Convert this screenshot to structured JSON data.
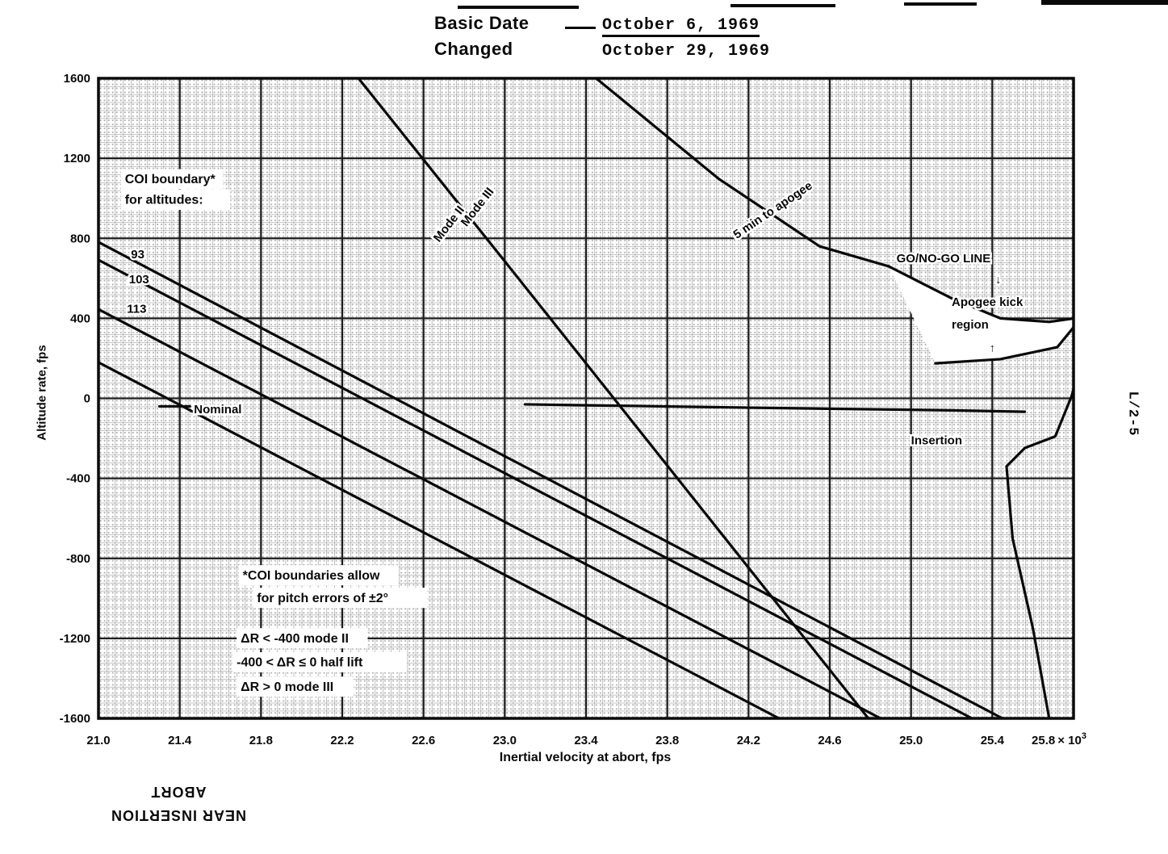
{
  "header": {
    "basic_date_label": "Basic Date",
    "basic_date_value": "October 6, 1969",
    "changed_label": "Changed",
    "changed_value": "October 29, 1969"
  },
  "side_label": "L/2-5",
  "footer_stamp": {
    "line1": "NEAR INSERTION",
    "line2": "ABORT"
  },
  "chart_data": {
    "type": "line",
    "title": "",
    "xlabel": "Inertial velocity at abort, fps",
    "ylabel": "Altitude rate, fps",
    "xlim": [
      21.0,
      25.8
    ],
    "ylim": [
      -1600,
      1600
    ],
    "x_ticks": [
      21.0,
      21.4,
      21.8,
      22.2,
      22.6,
      23.0,
      23.4,
      23.8,
      24.2,
      24.6,
      25.0,
      25.4,
      25.8
    ],
    "x_axis_multiplier": {
      "base": "× 10",
      "exponent": "3"
    },
    "y_ticks": [
      1600,
      1200,
      800,
      400,
      0,
      -400,
      -800,
      -1200,
      -1600
    ],
    "grid": {
      "major": true,
      "minor_halftone": true
    },
    "ink_color": "#0a0a0a",
    "legend": "none",
    "series": [
      {
        "name": "coi-boundary-93",
        "points": [
          [
            21.0,
            781
          ],
          [
            25.45,
            -1600
          ]
        ]
      },
      {
        "name": "coi-boundary-103",
        "points": [
          [
            21.0,
            692
          ],
          [
            25.3,
            -1600
          ]
        ]
      },
      {
        "name": "coi-boundary-113",
        "points": [
          [
            21.0,
            445
          ],
          [
            24.85,
            -1600
          ]
        ]
      },
      {
        "name": "nominal",
        "points": [
          [
            21.0,
            180
          ],
          [
            24.35,
            -1600
          ]
        ]
      },
      {
        "name": "nominal-leader",
        "points": [
          [
            21.3,
            -40
          ],
          [
            21.45,
            -40
          ]
        ]
      },
      {
        "name": "mode-ii-iii-boundary",
        "points": [
          [
            22.28,
            1600
          ],
          [
            23.02,
            660
          ],
          [
            24.79,
            -1600
          ]
        ]
      },
      {
        "name": "five-min-to-apogee",
        "points": [
          [
            23.45,
            1600
          ],
          [
            24.05,
            1100
          ],
          [
            24.55,
            760
          ],
          [
            24.89,
            660
          ]
        ]
      },
      {
        "name": "go-no-go-line",
        "points": [
          [
            24.89,
            660
          ],
          [
            25.2,
            500
          ],
          [
            25.44,
            400
          ],
          [
            25.68,
            382
          ],
          [
            25.84,
            405
          ]
        ]
      },
      {
        "name": "apogee-kick-lower-boundary",
        "points": [
          [
            25.12,
            175
          ],
          [
            25.44,
            196
          ],
          [
            25.72,
            256
          ],
          [
            25.84,
            405
          ]
        ]
      },
      {
        "name": "insertion-line",
        "points": [
          [
            23.1,
            -30
          ],
          [
            24.3,
            -48
          ],
          [
            25.2,
            -60
          ],
          [
            25.56,
            -67
          ]
        ]
      },
      {
        "name": "right-hook-curve",
        "points": [
          [
            25.84,
            405
          ],
          [
            25.82,
            120
          ],
          [
            25.79,
            10
          ],
          [
            25.71,
            -190
          ],
          [
            25.56,
            -248
          ],
          [
            25.47,
            -340
          ],
          [
            25.5,
            -700
          ],
          [
            25.6,
            -1150
          ],
          [
            25.68,
            -1600
          ]
        ]
      }
    ],
    "apogee_kick_region_outline": [
      [
        24.89,
        660
      ],
      [
        25.2,
        500
      ],
      [
        25.44,
        400
      ],
      [
        25.68,
        382
      ],
      [
        25.84,
        405
      ],
      [
        25.72,
        256
      ],
      [
        25.44,
        196
      ],
      [
        25.12,
        175
      ]
    ],
    "annotations": [
      {
        "name": "label-coi-boundary-line1",
        "text": "COI boundary*",
        "x": 21.13,
        "y": 1075,
        "bg": true,
        "size": 16
      },
      {
        "name": "label-coi-boundary-line2",
        "text": "for altitudes:",
        "x": 21.13,
        "y": 972,
        "bg": true,
        "size": 16
      },
      {
        "name": "label-altitude-93",
        "text": "93",
        "x": 21.16,
        "y": 700,
        "size": 15
      },
      {
        "name": "label-altitude-103",
        "text": "103",
        "x": 21.15,
        "y": 575,
        "size": 15
      },
      {
        "name": "label-altitude-113",
        "text": "113",
        "x": 21.14,
        "y": 428,
        "size": 15
      },
      {
        "name": "label-nominal",
        "text": "Nominal",
        "x": 21.47,
        "y": -75,
        "size": 15
      },
      {
        "name": "label-mode-iii",
        "text": "Mode III",
        "x": 22.88,
        "y": 945,
        "rot": -52,
        "anchor": "middle",
        "size": 15
      },
      {
        "name": "label-mode-ii",
        "text": "Mode II",
        "x": 22.74,
        "y": 860,
        "rot": -52,
        "anchor": "middle",
        "size": 15
      },
      {
        "name": "label-5-min-to-apogee",
        "text": "5 min to apogee",
        "x": 24.33,
        "y": 925,
        "rot": -34,
        "anchor": "middle",
        "size": 15
      },
      {
        "name": "label-go-no-go-line",
        "text": "GO/NO-GO LINE",
        "x": 25.16,
        "y": 680,
        "anchor": "middle",
        "size": 15
      },
      {
        "name": "label-apogee-kick-line1",
        "text": "Apogee kick",
        "x": 25.2,
        "y": 462,
        "size": 15
      },
      {
        "name": "label-apogee-kick-line2",
        "text": "region",
        "x": 25.2,
        "y": 350,
        "size": 15
      },
      {
        "name": "label-region-arrow-down",
        "text": "↓",
        "x": 25.43,
        "y": 575,
        "size": 14,
        "anchor": "middle"
      },
      {
        "name": "label-region-arrow-up",
        "text": "↑",
        "x": 25.4,
        "y": 235,
        "size": 14,
        "anchor": "middle"
      },
      {
        "name": "label-insertion",
        "text": "Insertion",
        "x": 25.0,
        "y": -230,
        "size": 15
      },
      {
        "name": "note-coi-line1",
        "text": "*COI boundaries allow",
        "x": 21.71,
        "y": -905,
        "bg": true,
        "size": 16
      },
      {
        "name": "note-coi-line2",
        "text": "for pitch errors of ±2°",
        "x": 21.78,
        "y": -1018,
        "bg": true,
        "size": 16
      },
      {
        "name": "rule-mode-ii",
        "text": "ΔR < -400 mode II",
        "x": 21.7,
        "y": -1220,
        "bg": true,
        "size": 16
      },
      {
        "name": "rule-half-lift",
        "text": "-400 < ΔR ≤ 0 half lift",
        "x": 21.68,
        "y": -1340,
        "bg": true,
        "size": 16
      },
      {
        "name": "rule-mode-iii",
        "text": "ΔR > 0 mode III",
        "x": 21.7,
        "y": -1462,
        "bg": true,
        "size": 16
      }
    ]
  }
}
